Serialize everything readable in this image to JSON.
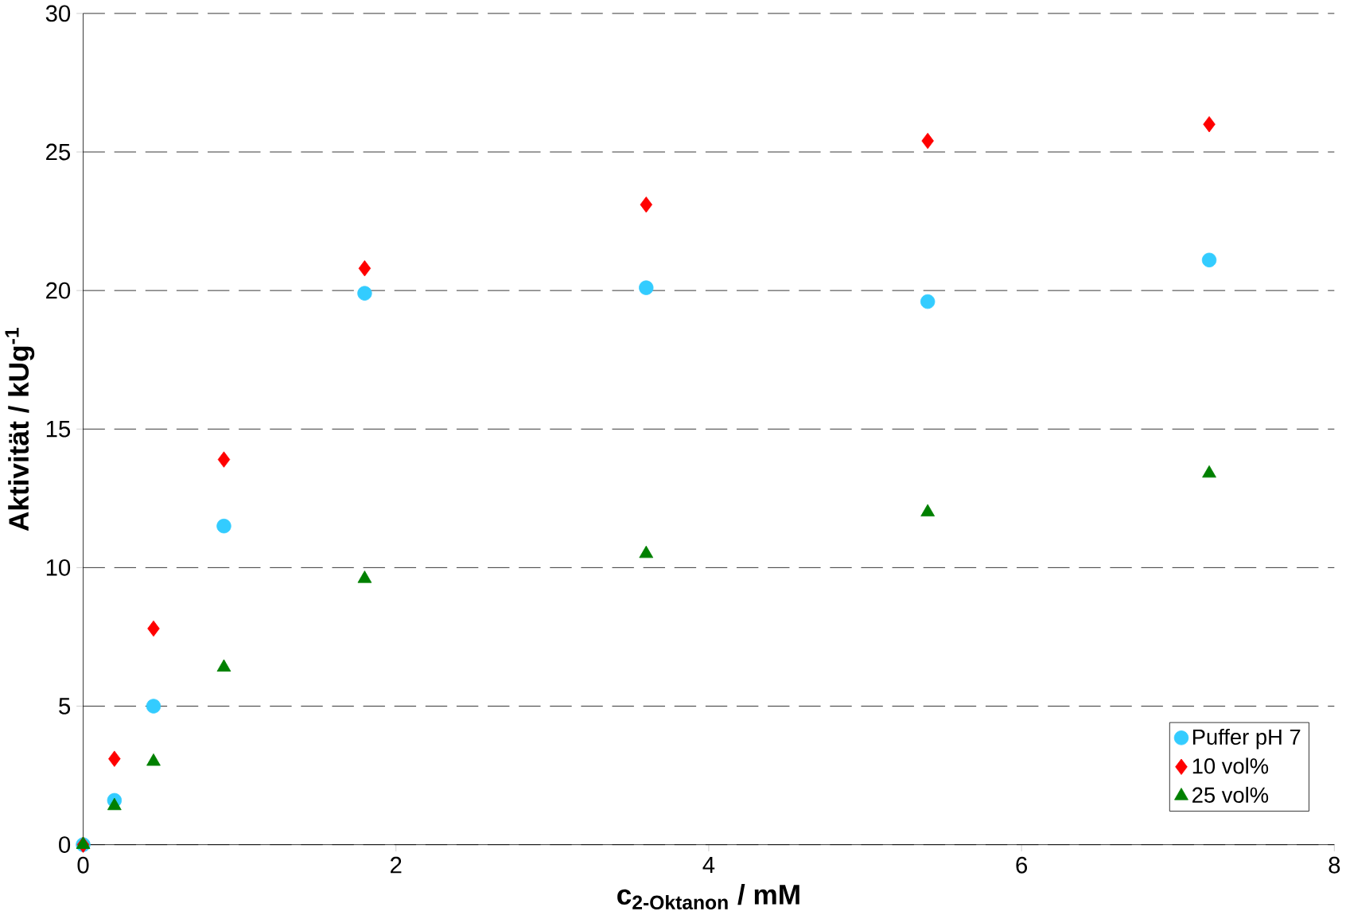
{
  "chart_data": {
    "type": "scatter",
    "xlabel": "c$_{2-Oktanon}$ / mM",
    "ylabel": "Aktivität / kUg$^{-1}$",
    "x": [
      0,
      0.2,
      0.45,
      0.9,
      1.8,
      3.6,
      5.4,
      7.2
    ],
    "series": [
      {
        "name": "Puffer pH 7",
        "color": "#33ccff",
        "marker": "circle",
        "values": [
          0,
          1.6,
          5.0,
          11.5,
          19.9,
          20.1,
          19.6,
          21.1
        ]
      },
      {
        "name": "10 vol%",
        "color": "#ff0000",
        "marker": "diamond",
        "values": [
          0,
          3.1,
          7.8,
          13.9,
          20.8,
          23.1,
          25.4,
          26.0
        ]
      },
      {
        "name": "25 vol%",
        "color": "#008000",
        "marker": "triangle",
        "values": [
          0,
          1.4,
          3.0,
          6.4,
          9.6,
          10.5,
          12.0,
          13.4
        ]
      }
    ],
    "xlim": [
      0,
      8
    ],
    "xticks": [
      0,
      2,
      4,
      6,
      8
    ],
    "ylim": [
      0,
      30
    ],
    "yticks": [
      0,
      5,
      10,
      15,
      20,
      25,
      30
    ],
    "grid": "y",
    "legend": "bottom right"
  }
}
